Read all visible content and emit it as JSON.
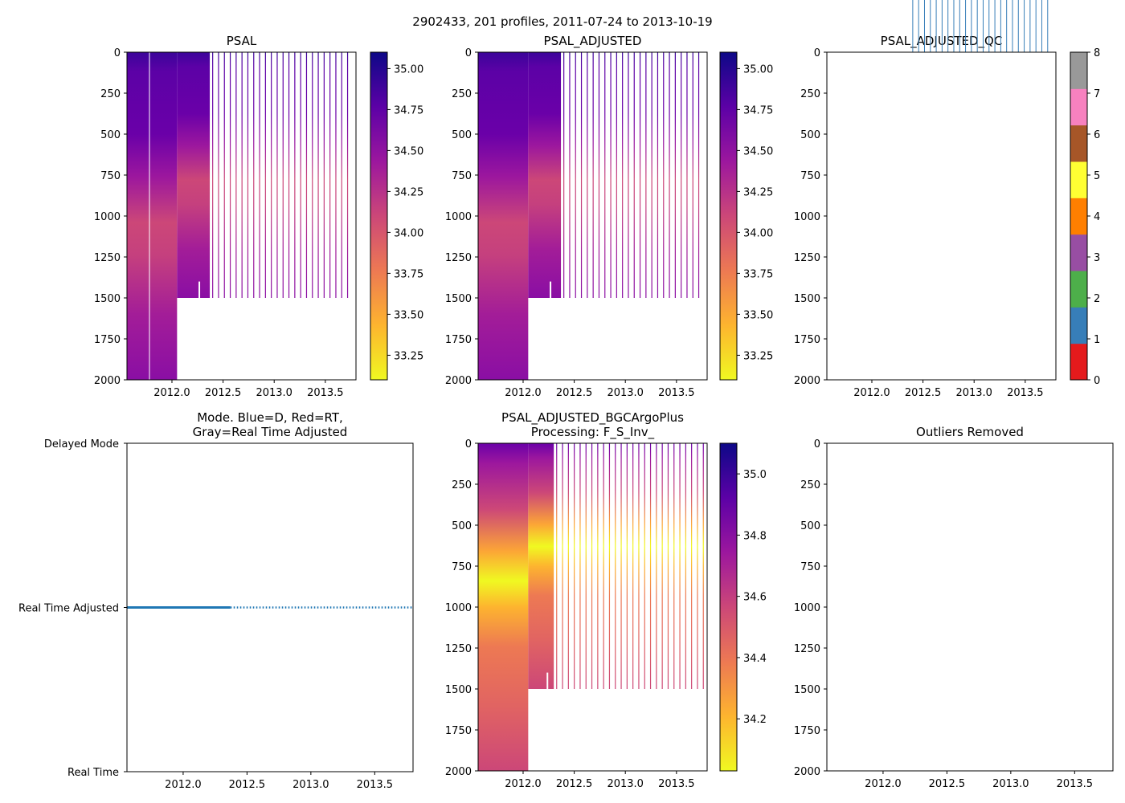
{
  "suptitle": "2902433, 201 profiles, 2011-07-24 to 2013-10-19",
  "colormaps": {
    "plasma_r": [
      "#f0f921",
      "#fdb42f",
      "#ed7953",
      "#cc4778",
      "#9c179e",
      "#5c01a6",
      "#0d0887"
    ],
    "qc": [
      "#e41a1c",
      "#377eb8",
      "#4daf4a",
      "#984ea3",
      "#ff7f00",
      "#ffff33",
      "#a65628",
      "#f781bf",
      "#999999"
    ],
    "mode_line": "#1f77b4"
  },
  "chart_data": [
    {
      "id": "psal",
      "type": "heatmap",
      "title": "PSAL",
      "xlim": [
        2011.56,
        2013.8
      ],
      "ylim": [
        2000,
        0
      ],
      "xticks": [
        "2012.0",
        "2012.5",
        "2013.0",
        "2013.5"
      ],
      "yticks": [
        "0",
        "250",
        "500",
        "750",
        "1000",
        "1250",
        "1500",
        "1750",
        "2000"
      ],
      "colorbar": {
        "range": [
          33.1,
          35.1
        ],
        "ticks": [
          "33.25",
          "33.50",
          "33.75",
          "34.00",
          "34.25",
          "34.50",
          "34.75",
          "35.00"
        ]
      },
      "dense_profiles_end": 2012.37,
      "deep_profiles_end": 2012.05,
      "shallow_depth": 1500,
      "sparse_profiles_end": 2013.76
    },
    {
      "id": "psal_adjusted",
      "type": "heatmap",
      "title": "PSAL_ADJUSTED",
      "xlim": [
        2011.56,
        2013.8
      ],
      "ylim": [
        2000,
        0
      ],
      "xticks": [
        "2012.0",
        "2012.5",
        "2013.0",
        "2013.5"
      ],
      "yticks": [
        "0",
        "250",
        "500",
        "750",
        "1000",
        "1250",
        "1500",
        "1750",
        "2000"
      ],
      "colorbar": {
        "range": [
          33.1,
          35.1
        ],
        "ticks": [
          "33.25",
          "33.50",
          "33.75",
          "34.00",
          "34.25",
          "34.50",
          "34.75",
          "35.00"
        ]
      },
      "dense_profiles_end": 2012.37,
      "deep_profiles_end": 2012.05,
      "shallow_depth": 1500,
      "sparse_profiles_end": 2013.76
    },
    {
      "id": "psal_adjusted_qc",
      "type": "heatmap",
      "title": "PSAL_ADJUSTED_QC",
      "xlim": [
        2011.56,
        2013.8
      ],
      "ylim": [
        2000,
        0
      ],
      "xticks": [
        "2012.0",
        "2012.5",
        "2013.0",
        "2013.5"
      ],
      "yticks": [
        "0",
        "250",
        "500",
        "750",
        "1000",
        "1250",
        "1500",
        "1750",
        "2000"
      ],
      "colorbar": {
        "range": [
          0,
          8
        ],
        "ticks": [
          "0",
          "1",
          "2",
          "3",
          "4",
          "5",
          "6",
          "7",
          "8"
        ]
      },
      "qc_value": 1
    },
    {
      "id": "mode",
      "type": "line",
      "title": "Mode. Blue=D, Red=RT,",
      "title2": "Gray=Real Time Adjusted",
      "xlim": [
        2011.56,
        2013.8
      ],
      "xticks": [
        "2012.0",
        "2012.5",
        "2013.0",
        "2013.5"
      ],
      "ycategories": [
        "Delayed Mode",
        "Real Time Adjusted",
        "Real Time"
      ],
      "series": [
        {
          "name": "mode",
          "y_category": "Real Time Adjusted",
          "x_start": 2011.56,
          "x_end": 2013.8
        }
      ]
    },
    {
      "id": "bgc",
      "type": "heatmap",
      "title": "PSAL_ADJUSTED_BGCArgoPlus",
      "title2": "Processing: F_S_Inv_",
      "xlim": [
        2011.56,
        2013.8
      ],
      "ylim": [
        2000,
        0
      ],
      "xticks": [
        "2012.0",
        "2012.5",
        "2013.0",
        "2013.5"
      ],
      "yticks": [
        "0",
        "250",
        "500",
        "750",
        "1000",
        "1250",
        "1500",
        "1750",
        "2000"
      ],
      "colorbar": {
        "range": [
          34.03,
          35.1
        ],
        "ticks": [
          "34.2",
          "34.4",
          "34.6",
          "34.8",
          "35.0"
        ]
      },
      "dense_profiles_end": 2012.3,
      "deep_profiles_end": 2012.05,
      "shallow_depth": 1500,
      "sparse_profiles_end": 2013.76
    },
    {
      "id": "outliers",
      "type": "scatter",
      "title": "Outliers Removed",
      "xlim": [
        2011.56,
        2013.8
      ],
      "ylim": [
        2000,
        0
      ],
      "xticks": [
        "2012.0",
        "2012.5",
        "2013.0",
        "2013.5"
      ],
      "yticks": [
        "0",
        "250",
        "500",
        "750",
        "1000",
        "1250",
        "1500",
        "1750",
        "2000"
      ],
      "points": []
    }
  ]
}
